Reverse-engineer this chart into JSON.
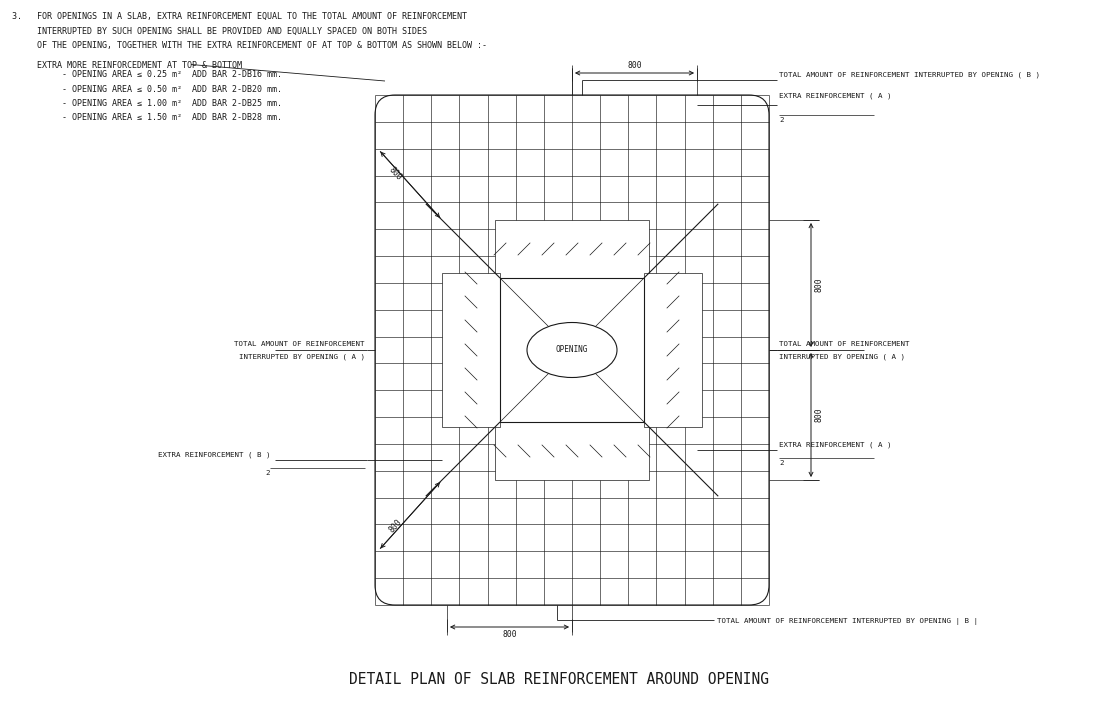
{
  "bg_color": "#ffffff",
  "lc": "#1a1a1a",
  "title": "DETAIL PLAN OF SLAB REINFORCEMENT AROUND OPENING",
  "note1": "3.   FOR OPENINGS IN A SLAB, EXTRA REINFORCEMENT EQUAL TO THE TOTAL AMOUNT OF REINFORCEMENT",
  "note2": "     INTERRUPTED BY SUCH OPENING SHALL BE PROVIDED AND EQUALLY SPACED ON BOTH SIDES",
  "note3": "     OF THE OPENING, TOGETHER WITH THE EXTRA REINFORCEMENT OF AT TOP & BOTTOM AS SHOWN BELOW :-",
  "note4": "     EXTRA MORE REINFORCEDMENT AT TOP & BOTTOM",
  "note5": "          - OPENING AREA ≤ 0.25 m²  ADD BAR 2-DB16 mm.",
  "note6": "          - OPENING AREA ≤ 0.50 m²  ADD BAR 2-DB20 mm.",
  "note7": "          - OPENING AREA ≤ 1.00 m²  ADD BAR 2-DB25 mm.",
  "note8": "          - OPENING AREA ≤ 1.50 m²  ADD BAR 2-DB28 mm.",
  "lbl_topB": "TOTAL AMOUNT OF REINFORCEMENT INTERRUPTED BY OPENING ( B )",
  "lbl_topA": "EXTRA REINFORCEMENT ( A )",
  "lbl_rightA1": "TOTAL AMOUNT OF REINFORCEMENT",
  "lbl_rightA2": "INTERRUPTED BY OPENING ( A )",
  "lbl_leftA1": "TOTAL AMOUNT OF REINFORCEMENT",
  "lbl_leftA2": "INTERRUPTED BY OPENING ( A )",
  "lbl_botB2_1": "EXTRA REINFORCEMENT ( B )",
  "lbl_botB": "TOTAL AMOUNT OF REINFORCEMENT INTERRUPTED BY OPENING | B |",
  "lbl_botA": "EXTRA REINFORCEMENT ( A )",
  "dim": "800"
}
